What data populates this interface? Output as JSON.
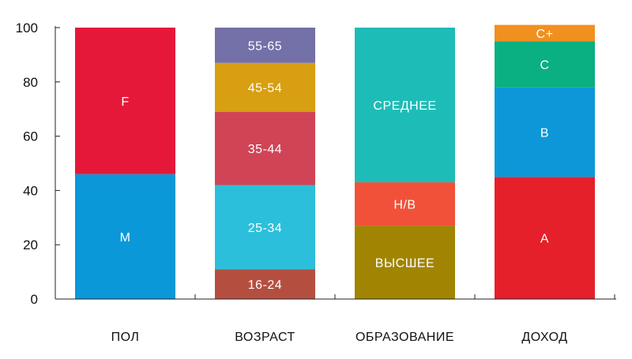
{
  "chart_data": {
    "type": "bar",
    "stacked": true,
    "ylim": [
      0,
      100
    ],
    "yticks": [
      0,
      20,
      40,
      60,
      80,
      100
    ],
    "grid": false,
    "categories": [
      {
        "label": "ПОЛ",
        "segments": [
          {
            "label": "M",
            "from": 0,
            "to": 46,
            "color": "#0b98d8"
          },
          {
            "label": "F",
            "from": 46,
            "to": 100,
            "color": "#e5183a"
          }
        ]
      },
      {
        "label": "ВОЗРАСТ",
        "segments": [
          {
            "label": "16-24",
            "from": 0,
            "to": 11,
            "color": "#b44f40"
          },
          {
            "label": "25-34",
            "from": 11,
            "to": 42,
            "color": "#2cbfdb"
          },
          {
            "label": "35-44",
            "from": 42,
            "to": 69,
            "color": "#d04456"
          },
          {
            "label": "45-54",
            "from": 69,
            "to": 87,
            "color": "#d79f11"
          },
          {
            "label": "55-65",
            "from": 87,
            "to": 100,
            "color": "#7470a8"
          }
        ]
      },
      {
        "label": "ОБРАЗОВАНИЕ",
        "segments": [
          {
            "label": "ВЫСШЕЕ",
            "from": 0,
            "to": 27,
            "color": "#a18502"
          },
          {
            "label": "Н/В",
            "from": 27,
            "to": 43,
            "color": "#f15138"
          },
          {
            "label": "СРЕДНЕЕ",
            "from": 43,
            "to": 100,
            "color": "#1ebcb6"
          }
        ]
      },
      {
        "label": "ДОХОД",
        "segments": [
          {
            "label": "A",
            "from": 0,
            "to": 45,
            "color": "#e5202a"
          },
          {
            "label": "B",
            "from": 45,
            "to": 78,
            "color": "#0d97d8"
          },
          {
            "label": "C",
            "from": 78,
            "to": 95,
            "color": "#0aaf82"
          },
          {
            "label": "C+",
            "from": 95,
            "to": 101,
            "color": "#f1901f"
          }
        ]
      }
    ]
  }
}
